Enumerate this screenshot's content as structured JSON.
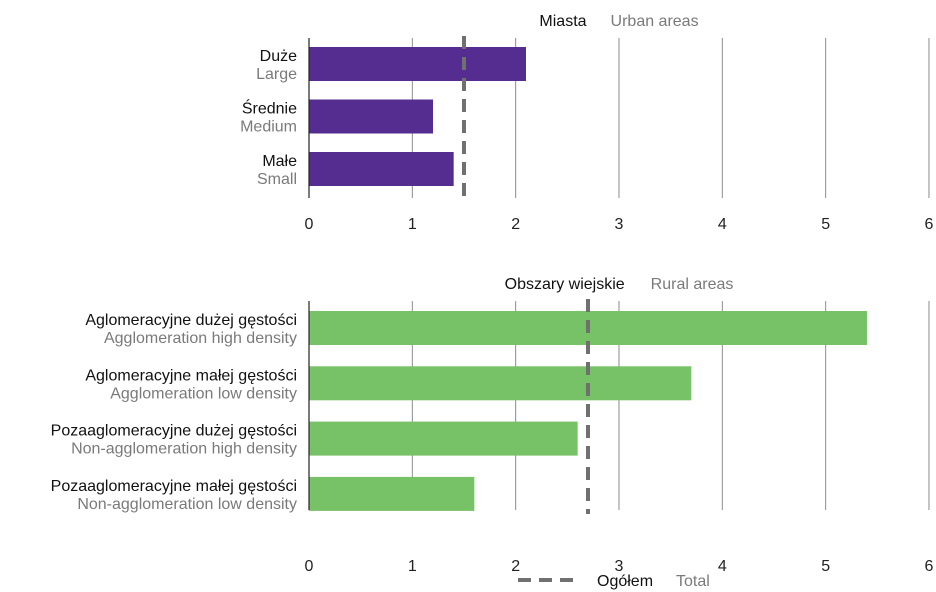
{
  "chart_data": [
    {
      "type": "bar",
      "orientation": "horizontal",
      "title_pl": "Miasta",
      "title_en": "Urban areas",
      "categories": [
        {
          "pl": "Duże",
          "en": "Large"
        },
        {
          "pl": "Średnie",
          "en": "Medium"
        },
        {
          "pl": "Małe",
          "en": "Small"
        }
      ],
      "values": [
        2.1,
        1.2,
        1.4
      ],
      "reference_value": 1.5,
      "xlim": [
        0,
        6
      ],
      "xticks": [
        0,
        1,
        2,
        3,
        4,
        5,
        6
      ],
      "bar_color": "#552d91",
      "grid": true
    },
    {
      "type": "bar",
      "orientation": "horizontal",
      "title_pl": "Obszary wiejskie",
      "title_en": "Rural areas",
      "categories": [
        {
          "pl": "Aglomeracyjne dużej gęstości",
          "en": "Agglomeration high density"
        },
        {
          "pl": "Aglomeracyjne małej gęstości",
          "en": "Agglomeration low density"
        },
        {
          "pl": "Pozaaglomeracyjne dużej gęstości",
          "en": "Non-agglomeration high density"
        },
        {
          "pl": "Pozaaglomeracyjne małej gęstości",
          "en": "Non-agglomeration low density"
        }
      ],
      "values": [
        5.4,
        3.7,
        2.6,
        1.6
      ],
      "reference_value": 2.7,
      "xlim": [
        0,
        6
      ],
      "xticks": [
        0,
        1,
        2,
        3,
        4,
        5,
        6
      ],
      "bar_color": "#77c166",
      "grid": true
    }
  ],
  "legend": {
    "label_pl": "Ogółem",
    "label_en": "Total",
    "line_color": "#707070"
  }
}
